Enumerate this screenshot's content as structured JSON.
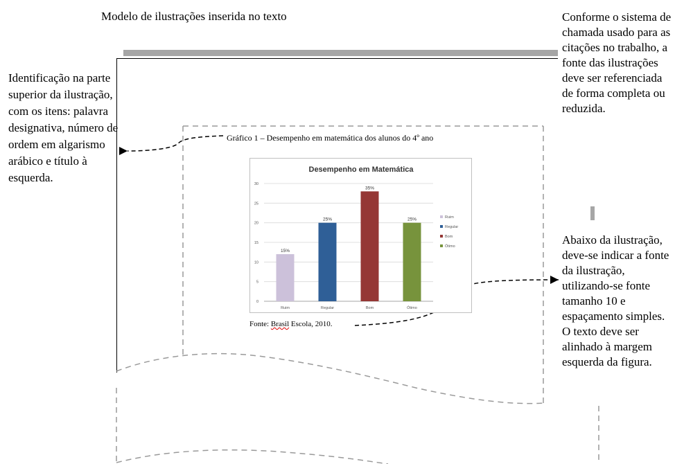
{
  "heading": "Modelo de ilustrações inserida no texto",
  "left_note": "Identificação na parte superior da ilustração, com os itens: palavra designativa, número de ordem em algarismo arábico e título à esquerda.",
  "right_note_top": "Conforme o sistema de chamada usado para as citações no trabalho, a fonte das ilustrações deve ser referenciada de forma completa ou reduzida.",
  "right_note_bottom": "Abaixo da ilustração, deve-se indicar a fonte da ilustração, utilizando-se fonte tamanho 10 e espaçamento simples. O texto deve ser alinhado à margem esquerda da figura.",
  "figure_caption": "Gráfico 1 – Desempenho em matemática dos alunos do 4º ano",
  "source": {
    "prefix": "Fonte: ",
    "underlined_word": "Brasil",
    "suffix": " Escola, 2010."
  },
  "chart_data": {
    "type": "bar",
    "title": "Desempenho em Matemática",
    "categories": [
      "Ruim",
      "Regular",
      "Bom",
      "Ótimo"
    ],
    "values": [
      12,
      20,
      28,
      20
    ],
    "data_labels": [
      "15%",
      "25%",
      "35%",
      "25%"
    ],
    "colors": [
      "#ccc1da",
      "#2f5f97",
      "#953735",
      "#77933c"
    ],
    "ylim": [
      0,
      30
    ],
    "yticks": [
      0,
      5,
      10,
      15,
      20,
      25,
      30
    ],
    "grid": true,
    "legend": {
      "position": "right",
      "entries": [
        "Ruim",
        "Regular",
        "Bom",
        "Ótimo"
      ]
    },
    "xlabel": "",
    "ylabel": ""
  }
}
